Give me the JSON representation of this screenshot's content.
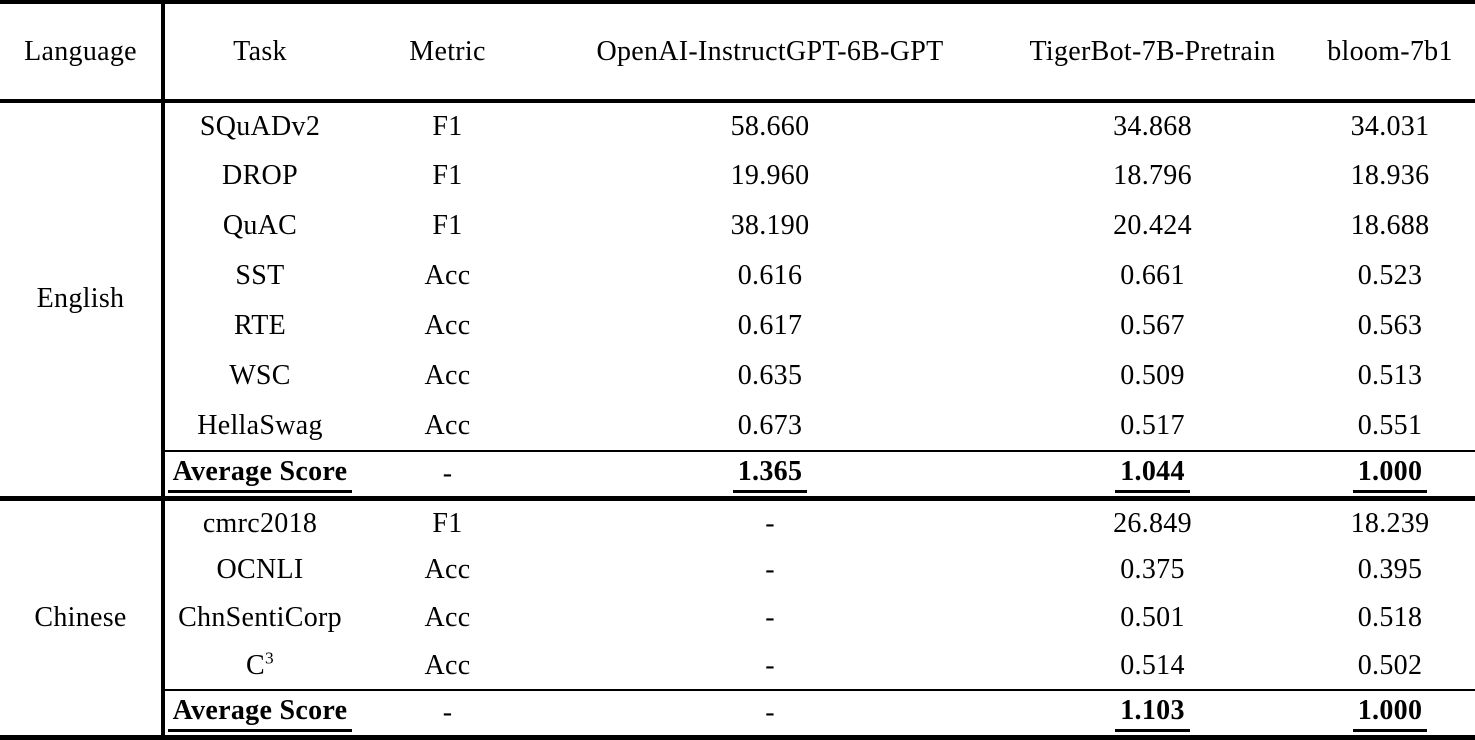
{
  "table": {
    "columns": [
      "Language",
      "Task",
      "Metric",
      "OpenAI-InstructGPT-6B-GPT",
      "TigerBot-7B-Pretrain",
      "bloom-7b1"
    ],
    "sections": [
      {
        "language": "English",
        "rows": [
          {
            "task": "SQuADv2",
            "metric": "F1",
            "values": [
              "58.660",
              "34.868",
              "34.031"
            ]
          },
          {
            "task": "DROP",
            "metric": "F1",
            "values": [
              "19.960",
              "18.796",
              "18.936"
            ]
          },
          {
            "task": "QuAC",
            "metric": "F1",
            "values": [
              "38.190",
              "20.424",
              "18.688"
            ]
          },
          {
            "task": "SST",
            "metric": "Acc",
            "values": [
              "0.616",
              "0.661",
              "0.523"
            ]
          },
          {
            "task": "RTE",
            "metric": "Acc",
            "values": [
              "0.617",
              "0.567",
              "0.563"
            ]
          },
          {
            "task": "WSC",
            "metric": "Acc",
            "values": [
              "0.635",
              "0.509",
              "0.513"
            ]
          },
          {
            "task": "HellaSwag",
            "metric": "Acc",
            "values": [
              "0.673",
              "0.517",
              "0.551"
            ]
          }
        ],
        "average": {
          "label": "Average Score",
          "metric": "-",
          "values": [
            "1.365",
            "1.044",
            "1.000"
          ]
        }
      },
      {
        "language": "Chinese",
        "rows": [
          {
            "task": "cmrc2018",
            "metric": "F1",
            "values": [
              "-",
              "26.849",
              "18.239"
            ]
          },
          {
            "task": "OCNLI",
            "metric": "Acc",
            "values": [
              "-",
              "0.375",
              "0.395"
            ]
          },
          {
            "task": "ChnSentiCorp",
            "metric": "Acc",
            "values": [
              "-",
              "0.501",
              "0.518"
            ]
          },
          {
            "task": "C",
            "task_sup": "3",
            "metric": "Acc",
            "values": [
              "-",
              "0.514",
              "0.502"
            ]
          }
        ],
        "average": {
          "label": "Average Score",
          "metric": "-",
          "values": [
            "-",
            "1.103",
            "1.000"
          ]
        }
      }
    ],
    "text_color": "#000000",
    "background_color": "#ffffff"
  }
}
